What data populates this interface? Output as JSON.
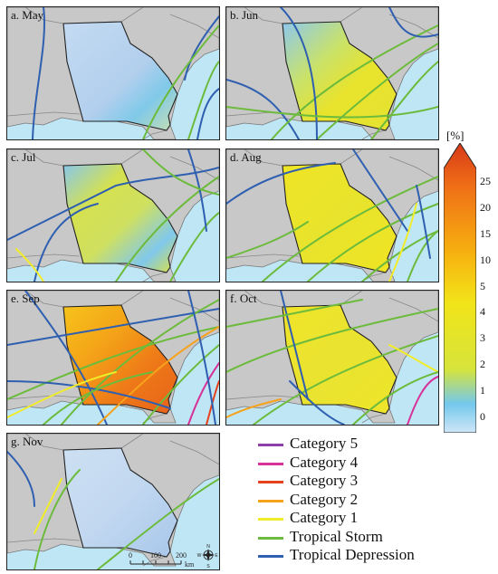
{
  "panels": [
    {
      "label": "a. May"
    },
    {
      "label": "b. Jun"
    },
    {
      "label": "c. Jul"
    },
    {
      "label": "d. Aug"
    },
    {
      "label": "e. Sep"
    },
    {
      "label": "f. Oct"
    },
    {
      "label": "g. Nov"
    }
  ],
  "colorbar": {
    "unit": "[%]",
    "ticks": [
      "25",
      "20",
      "15",
      "10",
      "5",
      "4",
      "3",
      "2",
      "1",
      "0"
    ],
    "colors": [
      "#cfe6f7",
      "#74c8ec",
      "#d6e43a",
      "#f2e419",
      "#f7b10f",
      "#ef6f17",
      "#d83a18"
    ]
  },
  "legend": [
    {
      "label": "Category 5",
      "color": "#8c3fa8"
    },
    {
      "label": "Category 4",
      "color": "#d6329a"
    },
    {
      "label": "Category 3",
      "color": "#e6421d"
    },
    {
      "label": "Category 2",
      "color": "#f7a21c"
    },
    {
      "label": "Category 1",
      "color": "#f1ec2a"
    },
    {
      "label": "Tropical Storm",
      "color": "#6cbb3c"
    },
    {
      "label": "Tropical Depression",
      "color": "#2f5fb0"
    }
  ],
  "scalebar": {
    "labels": [
      "0",
      "100",
      "200"
    ],
    "unit": "km"
  },
  "compass": {
    "n": "N",
    "s": "S",
    "e": "E",
    "w": "W"
  }
}
